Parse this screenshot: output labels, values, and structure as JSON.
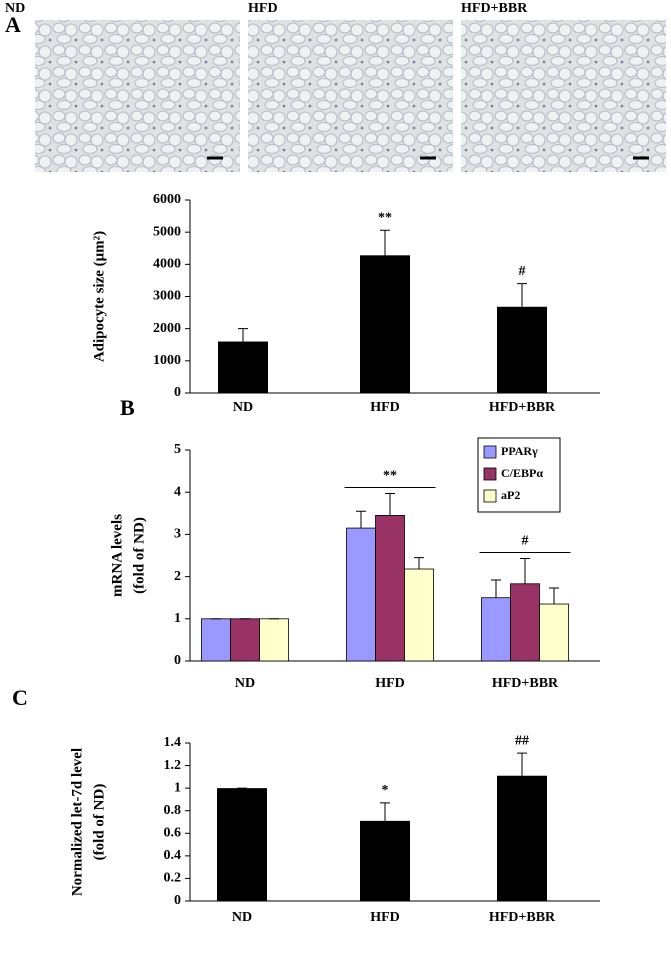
{
  "micrographs": {
    "panel": "A",
    "labels": [
      "ND",
      "HFD",
      "HFD+BBR"
    ]
  },
  "chart_data": [
    {
      "type": "bar",
      "ylabel": [
        "Adipocyte size (μm²)"
      ],
      "categories": [
        "ND",
        "HFD",
        "HFD+BBR"
      ],
      "values": [
        1600,
        4280,
        2680
      ],
      "errors": [
        400,
        780,
        720
      ],
      "annotations": [
        null,
        "**",
        "#"
      ],
      "color": "#000000",
      "ylim": [
        0,
        6000
      ],
      "yticks": [
        0,
        1000,
        2000,
        3000,
        4000,
        5000,
        6000
      ]
    },
    {
      "type": "grouped-bar",
      "panel": "B",
      "ylabel": [
        "mRNA levels",
        "(fold of ND)"
      ],
      "categories": [
        "ND",
        "HFD",
        "HFD+BBR"
      ],
      "series": [
        {
          "name": "PPARγ",
          "color": "#9999ff",
          "values": [
            1,
            3.15,
            1.5
          ],
          "errors": [
            0,
            0.4,
            0.42
          ]
        },
        {
          "name": "C/EBPα",
          "color": "#993366",
          "values": [
            1,
            3.45,
            1.83
          ],
          "errors": [
            0,
            0.52,
            0.6
          ]
        },
        {
          "name": "aP2",
          "color": "#ffffcc",
          "values": [
            1,
            2.18,
            1.35
          ],
          "errors": [
            0,
            0.27,
            0.38
          ]
        }
      ],
      "annotations": [
        null,
        "**",
        "#"
      ],
      "legend": "upper right",
      "ylim": [
        0,
        5
      ],
      "yticks": [
        0,
        1,
        2,
        3,
        4,
        5
      ]
    },
    {
      "type": "bar",
      "panel": "C",
      "ylabel": [
        "Normalized let-7d level",
        "(fold of ND)"
      ],
      "categories": [
        "ND",
        "HFD",
        "HFD+BBR"
      ],
      "values": [
        1,
        0.71,
        1.11
      ],
      "errors": [
        0,
        0.16,
        0.2
      ],
      "annotations": [
        null,
        "*",
        "##"
      ],
      "color": "#000000",
      "ylim": [
        0,
        1.4
      ],
      "yticks": [
        0,
        0.2,
        0.4,
        0.6,
        0.8,
        1,
        1.2,
        1.4
      ]
    }
  ]
}
